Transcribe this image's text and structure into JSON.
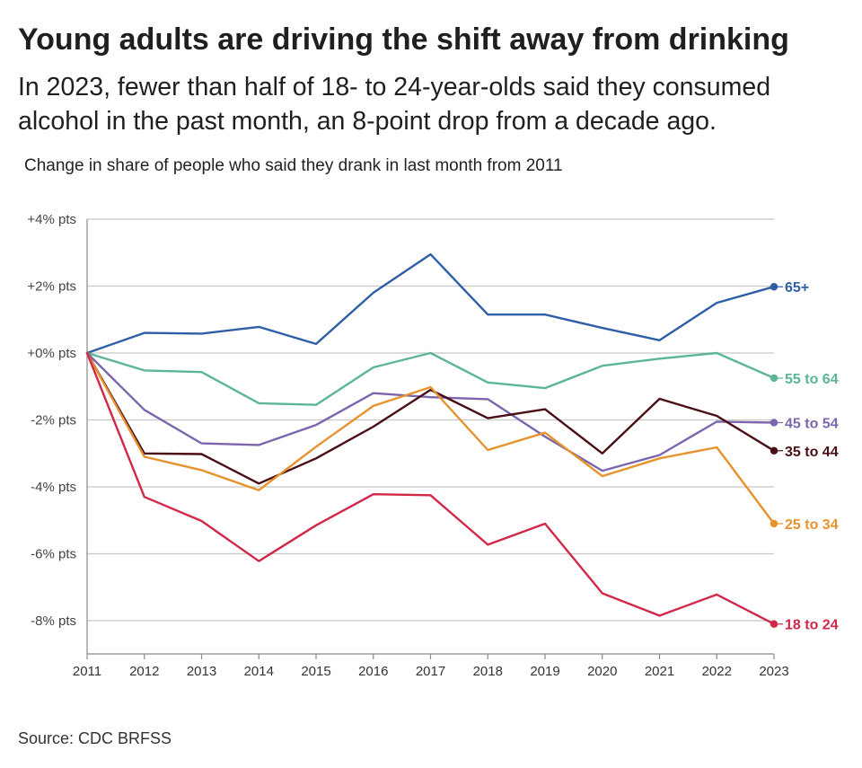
{
  "title": "Young adults are driving the shift away from drinking",
  "subtitle": "In 2023, fewer than half of 18- to 24-year-olds said they consumed alcohol in the past month,  an 8-point drop from a decade ago.",
  "source": "Source: CDC BRFSS",
  "chart_data": {
    "type": "line",
    "title": "Change in share of people who said they drank in last month from 2011",
    "xlabel": "",
    "ylabel": "",
    "x": [
      "2011",
      "2012",
      "2013",
      "2014",
      "2015",
      "2016",
      "2017",
      "2018",
      "2019",
      "2020",
      "2021",
      "2022",
      "2023"
    ],
    "ylim": [
      -9,
      4
    ],
    "yticks": [
      4,
      2,
      0,
      -2,
      -4,
      -6,
      -8
    ],
    "ytick_labels": [
      "+4% pts",
      "+2% pts",
      "+0% pts",
      "-2% pts",
      "-4% pts",
      "-6% pts",
      "-8% pts"
    ],
    "grid": true,
    "series": [
      {
        "name": "65+",
        "color": "#2e5fa6",
        "values": [
          0,
          0.6,
          0.58,
          0.78,
          0.27,
          1.8,
          2.95,
          1.15,
          1.15,
          0.75,
          0.38,
          1.5,
          1.98
        ]
      },
      {
        "name": "55 to 64",
        "color": "#5db597",
        "values": [
          0,
          -0.52,
          -0.57,
          -1.5,
          -1.55,
          -0.43,
          0.0,
          -0.88,
          -1.05,
          -0.38,
          -0.17,
          0.0,
          -0.75
        ]
      },
      {
        "name": "45 to 54",
        "color": "#7b66ad",
        "values": [
          0,
          -1.7,
          -2.7,
          -2.75,
          -2.15,
          -1.2,
          -1.32,
          -1.38,
          -2.5,
          -3.52,
          -3.05,
          -2.05,
          -2.08
        ]
      },
      {
        "name": "35 to 44",
        "color": "#4a0f14",
        "values": [
          0,
          -3.0,
          -3.02,
          -3.9,
          -3.15,
          -2.2,
          -1.1,
          -1.95,
          -1.68,
          -3.0,
          -1.37,
          -1.88,
          -2.92
        ]
      },
      {
        "name": "25 to 34",
        "color": "#e6922d",
        "values": [
          0,
          -3.1,
          -3.5,
          -4.1,
          -2.8,
          -1.58,
          -1.02,
          -2.9,
          -2.38,
          -3.68,
          -3.15,
          -2.82,
          -5.1
        ]
      },
      {
        "name": "18 to 24",
        "color": "#d1284a",
        "values": [
          0,
          -4.3,
          -5.02,
          -6.22,
          -5.15,
          -4.22,
          -4.25,
          -5.73,
          -5.1,
          -7.18,
          -7.85,
          -7.22,
          -8.1
        ]
      }
    ]
  }
}
